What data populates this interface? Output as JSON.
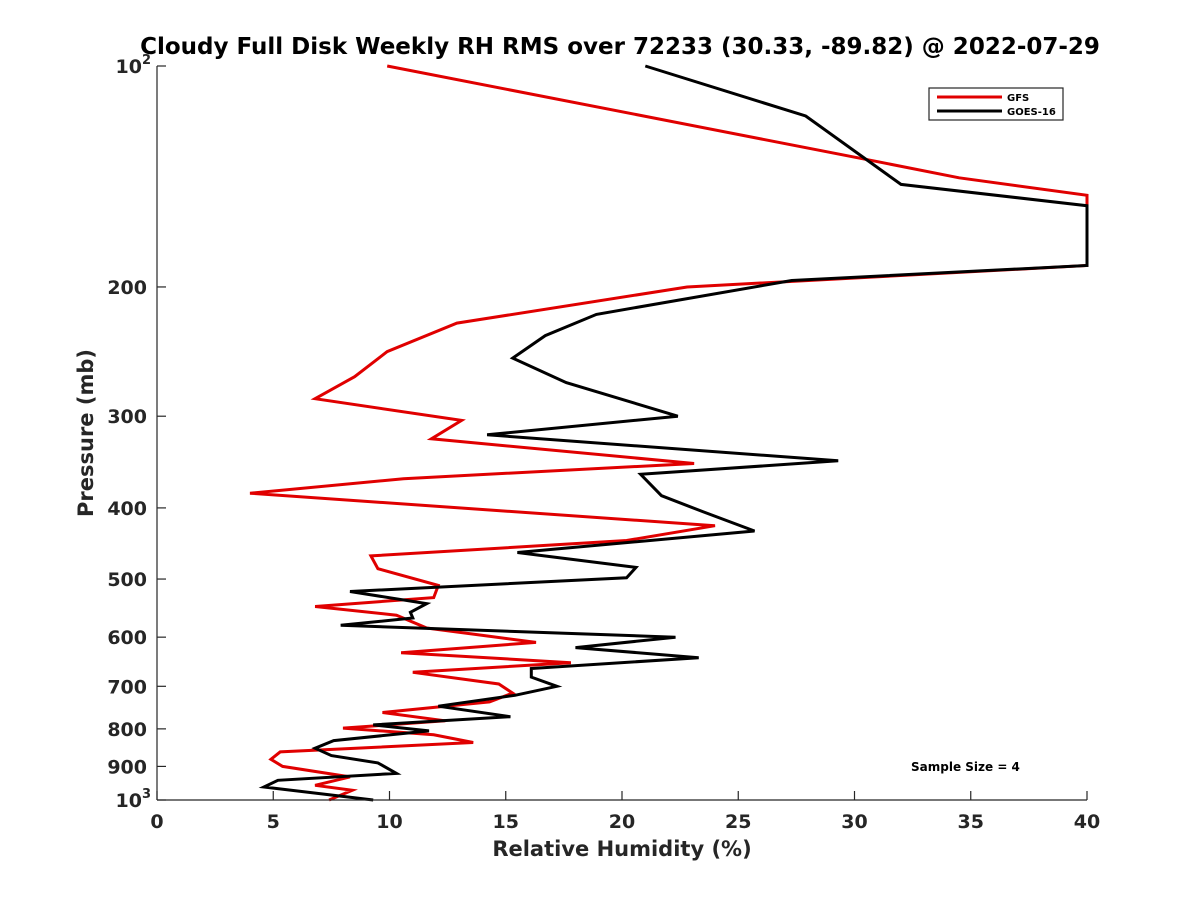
{
  "chart_data": {
    "type": "line",
    "title": "Cloudy Full Disk Weekly RH RMS over 72233 (30.33, -89.82) @ 2022-07-29",
    "xlabel": "Relative Humidity (%)",
    "ylabel": "Pressure (mb)",
    "xlim": [
      0,
      40
    ],
    "ylim": [
      100,
      1000
    ],
    "yscale": "log",
    "y_reversed": true,
    "xticks": [
      0,
      5,
      10,
      15,
      20,
      25,
      30,
      35,
      40
    ],
    "xtick_labels": [
      "0",
      "5",
      "10",
      "15",
      "20",
      "25",
      "30",
      "35",
      "40"
    ],
    "yticks": [
      100,
      200,
      300,
      400,
      500,
      600,
      700,
      800,
      900,
      1000
    ],
    "ytick_labels": [
      {
        "base": "10",
        "exp": "2"
      },
      {
        "base": "200",
        "exp": ""
      },
      {
        "base": "300",
        "exp": ""
      },
      {
        "base": "400",
        "exp": ""
      },
      {
        "base": "500",
        "exp": ""
      },
      {
        "base": "600",
        "exp": ""
      },
      {
        "base": "700",
        "exp": ""
      },
      {
        "base": "800",
        "exp": ""
      },
      {
        "base": "900",
        "exp": ""
      },
      {
        "base": "10",
        "exp": "3"
      }
    ],
    "legend_position": "top-right",
    "annotation": "Sample Size = 4",
    "series": [
      {
        "name": "GFS",
        "color": "#e00000",
        "points": [
          [
            9.9,
            100
          ],
          [
            31.0,
            135
          ],
          [
            34.5,
            142
          ],
          [
            40.0,
            150
          ],
          [
            40.0,
            187
          ],
          [
            22.8,
            200
          ],
          [
            12.9,
            224
          ],
          [
            9.9,
            245
          ],
          [
            8.5,
            265
          ],
          [
            6.8,
            284
          ],
          [
            13.1,
            304
          ],
          [
            11.8,
            322
          ],
          [
            23.1,
            348
          ],
          [
            10.6,
            365
          ],
          [
            4.0,
            382
          ],
          [
            14.0,
            402
          ],
          [
            24.0,
            423
          ],
          [
            20.2,
            443
          ],
          [
            9.2,
            465
          ],
          [
            9.5,
            484
          ],
          [
            12.1,
            510
          ],
          [
            11.9,
            530
          ],
          [
            6.8,
            545
          ],
          [
            10.3,
            560
          ],
          [
            11.6,
            583
          ],
          [
            16.3,
            610
          ],
          [
            10.5,
            630
          ],
          [
            17.8,
            650
          ],
          [
            11.0,
            670
          ],
          [
            14.7,
            695
          ],
          [
            15.3,
            715
          ],
          [
            14.3,
            735
          ],
          [
            9.7,
            760
          ],
          [
            12.4,
            780
          ],
          [
            8.0,
            798
          ],
          [
            11.9,
            815
          ],
          [
            13.6,
            835
          ],
          [
            5.3,
            860
          ],
          [
            4.9,
            880
          ],
          [
            5.4,
            900
          ],
          [
            8.3,
            930
          ],
          [
            6.8,
            955
          ],
          [
            8.4,
            970
          ],
          [
            7.4,
            1000
          ]
        ]
      },
      {
        "name": "GOES-16",
        "color": "#000000",
        "points": [
          [
            21.0,
            100
          ],
          [
            27.9,
            117
          ],
          [
            32.0,
            145
          ],
          [
            40.0,
            155
          ],
          [
            40.0,
            187
          ],
          [
            27.3,
            196
          ],
          [
            18.9,
            218
          ],
          [
            16.7,
            233
          ],
          [
            15.3,
            250
          ],
          [
            17.6,
            270
          ],
          [
            22.4,
            300
          ],
          [
            14.2,
            318
          ],
          [
            29.3,
            345
          ],
          [
            20.8,
            360
          ],
          [
            21.7,
            385
          ],
          [
            23.5,
            405
          ],
          [
            25.7,
            430
          ],
          [
            15.5,
            460
          ],
          [
            20.6,
            482
          ],
          [
            20.2,
            498
          ],
          [
            8.3,
            520
          ],
          [
            11.6,
            540
          ],
          [
            10.9,
            555
          ],
          [
            11.0,
            565
          ],
          [
            7.9,
            578
          ],
          [
            22.3,
            600
          ],
          [
            18.0,
            620
          ],
          [
            23.3,
            640
          ],
          [
            16.1,
            662
          ],
          [
            16.1,
            680
          ],
          [
            17.2,
            700
          ],
          [
            15.4,
            720
          ],
          [
            12.1,
            745
          ],
          [
            15.2,
            770
          ],
          [
            9.3,
            790
          ],
          [
            11.7,
            805
          ],
          [
            7.6,
            830
          ],
          [
            6.8,
            850
          ],
          [
            7.5,
            870
          ],
          [
            9.5,
            890
          ],
          [
            10.3,
            920
          ],
          [
            5.2,
            940
          ],
          [
            4.6,
            960
          ],
          [
            9.3,
            1000
          ]
        ]
      }
    ]
  }
}
